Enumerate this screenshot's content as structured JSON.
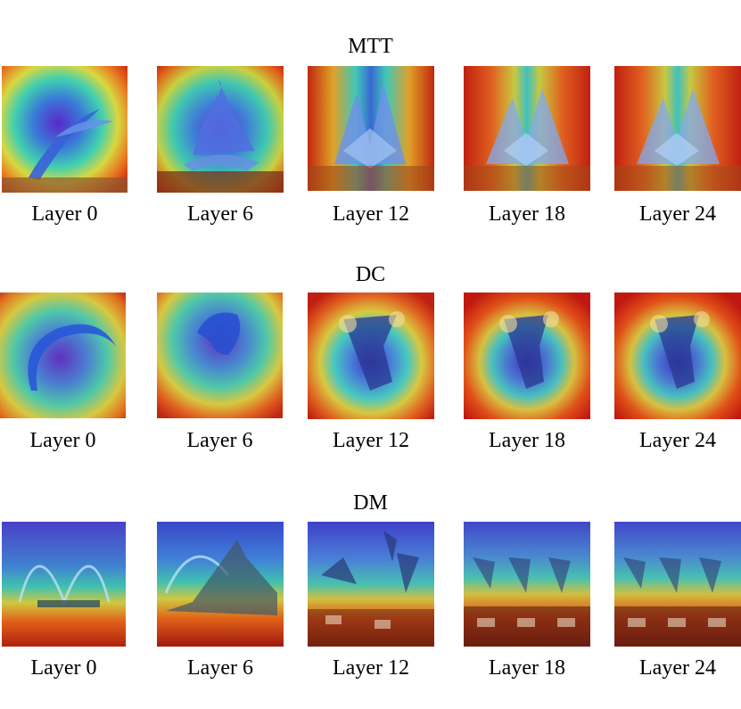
{
  "figure": {
    "rows": [
      {
        "title": "MTT",
        "captions": [
          "Layer 0",
          "Layer 6",
          "Layer 12",
          "Layer 18",
          "Layer 24"
        ],
        "subject": "pelican"
      },
      {
        "title": "DC",
        "captions": [
          "Layer 0",
          "Layer 6",
          "Layer 12",
          "Layer 18",
          "Layer 24"
        ],
        "subject": "leaping-animal"
      },
      {
        "title": "DM",
        "captions": [
          "Layer 0",
          "Layer 6",
          "Layer 12",
          "Layer 18",
          "Layer 24"
        ],
        "subject": "fireboat"
      }
    ]
  },
  "colors": {
    "heat_low": "#3030c8",
    "heat_mid": "#30c8c0",
    "heat_warm": "#e8d030",
    "heat_high": "#d02010"
  }
}
